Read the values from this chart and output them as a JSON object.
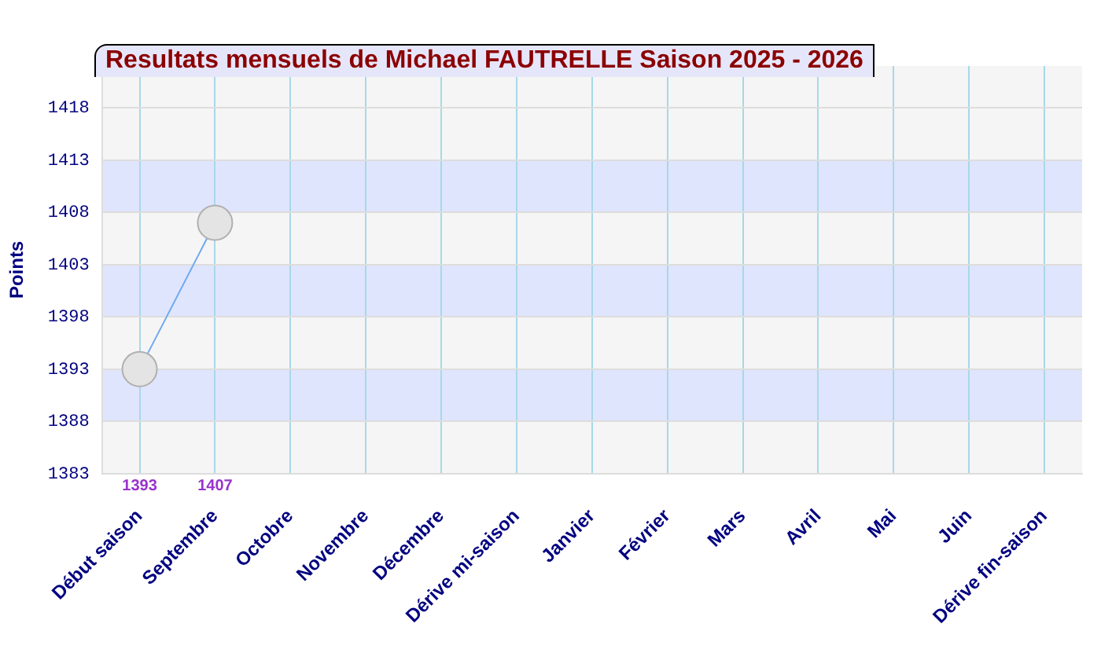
{
  "chart_data": {
    "type": "line",
    "title": "Resultats mensuels de Michael FAUTRELLE Saison 2025 - 2026",
    "ylabel": "Points",
    "categories": [
      "Début saison",
      "Septembre",
      "Octobre",
      "Novembre",
      "Décembre",
      "Dérive mi-saison",
      "Janvier",
      "Février",
      "Mars",
      "Avril",
      "Mai",
      "Juin",
      "Dérive fin-saison"
    ],
    "series": [
      {
        "color": "#6fa8f0",
        "values": [
          1393,
          1407,
          null,
          null,
          null,
          null,
          null,
          null,
          null,
          null,
          null,
          null,
          null
        ]
      }
    ],
    "ylim": [
      1383,
      1422
    ],
    "yticks": [
      1383,
      1388,
      1393,
      1398,
      1403,
      1408,
      1413,
      1418
    ],
    "grid": true,
    "marker": "circle",
    "data_labels": true
  }
}
